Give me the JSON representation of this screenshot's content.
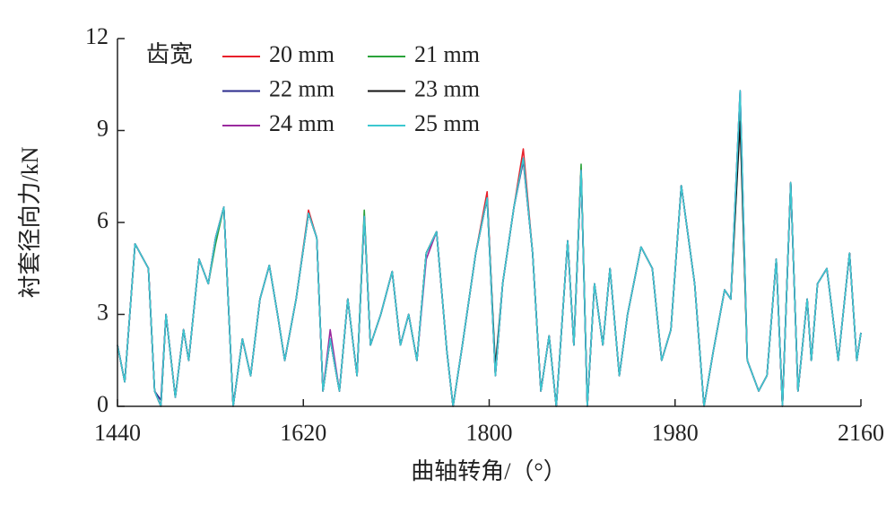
{
  "chart_data": {
    "type": "line",
    "xlabel": "曲轴转角/（°）",
    "ylabel": "衬套径向力/kN",
    "legend_title": "齿宽",
    "xlim": [
      1440,
      2160
    ],
    "xticks": [
      1440,
      1620,
      1800,
      1980,
      2160
    ],
    "ylim": [
      0,
      12
    ],
    "yticks": [
      0,
      3,
      6,
      9,
      12
    ],
    "x": [
      1440,
      1447,
      1457,
      1470,
      1476,
      1482,
      1487,
      1496,
      1504,
      1509,
      1519,
      1528,
      1535,
      1543,
      1552,
      1561,
      1569,
      1578,
      1587,
      1595,
      1602,
      1613,
      1625,
      1633,
      1639,
      1646,
      1655,
      1663,
      1672,
      1679,
      1685,
      1695,
      1706,
      1714,
      1722,
      1730,
      1739,
      1749,
      1759,
      1765,
      1774,
      1787,
      1798,
      1806,
      1813,
      1824,
      1833,
      1842,
      1850,
      1858,
      1865,
      1876,
      1882,
      1889,
      1895,
      1902,
      1910,
      1917,
      1926,
      1934,
      1947,
      1958,
      1967,
      1976,
      1986,
      1999,
      2008,
      2017,
      2028,
      2034,
      2043,
      2050,
      2061,
      2069,
      2078,
      2084,
      2092,
      2099,
      2108,
      2112,
      2118,
      2127,
      2138,
      2149,
      2156,
      2160
    ],
    "series": [
      {
        "name": "20 mm",
        "color": "#e8202a",
        "values": [
          2.0,
          0.8,
          5.3,
          4.5,
          0.5,
          0,
          3.0,
          0.3,
          2.5,
          1.5,
          4.8,
          4.0,
          5.5,
          6.5,
          0,
          2.2,
          1.0,
          3.5,
          4.6,
          3.0,
          1.5,
          3.5,
          6.4,
          5.5,
          0.5,
          2.2,
          0.5,
          3.5,
          1.0,
          6.2,
          2.0,
          3.0,
          4.4,
          2.0,
          3.0,
          1.5,
          5.0,
          5.7,
          1.8,
          0,
          2.0,
          5.0,
          7.0,
          1.0,
          4.0,
          6.5,
          8.4,
          5.0,
          0.5,
          2.3,
          0,
          5.4,
          2.0,
          7.7,
          0,
          4.0,
          2.0,
          4.5,
          1.0,
          3.0,
          5.2,
          4.5,
          1.5,
          2.5,
          7.2,
          4.0,
          0,
          1.8,
          3.8,
          3.5,
          10.0,
          1.5,
          0.5,
          1.0,
          4.8,
          0,
          7.3,
          0.5,
          3.5,
          1.5,
          4.0,
          4.5,
          1.5,
          5.0,
          1.5,
          2.4
        ]
      },
      {
        "name": "21 mm",
        "color": "#2aa33a",
        "values": [
          2.0,
          0.8,
          5.3,
          4.5,
          0.5,
          0,
          3.0,
          0.3,
          2.5,
          1.5,
          4.8,
          4.0,
          5.3,
          6.5,
          0,
          2.2,
          1.0,
          3.5,
          4.6,
          3.0,
          1.5,
          3.5,
          6.3,
          5.5,
          0.5,
          2.2,
          0.5,
          3.5,
          1.0,
          6.4,
          2.0,
          3.0,
          4.4,
          2.0,
          3.0,
          1.5,
          5.0,
          5.7,
          1.8,
          0,
          2.0,
          5.0,
          6.8,
          1.0,
          4.0,
          6.5,
          8.1,
          5.0,
          0.5,
          2.3,
          0,
          5.4,
          2.0,
          7.9,
          0,
          4.0,
          2.0,
          4.5,
          1.0,
          3.0,
          5.2,
          4.5,
          1.5,
          2.5,
          7.2,
          4.0,
          0,
          1.8,
          3.8,
          3.5,
          9.5,
          1.5,
          0.5,
          1.0,
          4.8,
          0,
          7.3,
          0.5,
          3.5,
          1.5,
          4.0,
          4.5,
          1.5,
          5.0,
          1.5,
          2.4
        ]
      },
      {
        "name": "22 mm",
        "color": "#2a2a8c",
        "values": [
          2.0,
          0.8,
          5.3,
          4.5,
          0.5,
          0.2,
          3.0,
          0.3,
          2.5,
          1.5,
          4.8,
          4.0,
          5.5,
          6.5,
          0,
          2.2,
          1.0,
          3.5,
          4.6,
          3.0,
          1.5,
          3.5,
          6.3,
          5.5,
          0.5,
          2.2,
          0.5,
          3.5,
          1.0,
          6.2,
          2.0,
          3.0,
          4.4,
          2.0,
          3.0,
          1.5,
          5.0,
          5.7,
          1.8,
          0,
          2.0,
          5.0,
          6.8,
          1.0,
          4.0,
          6.5,
          8.0,
          5.0,
          0.5,
          2.3,
          0,
          5.4,
          2.0,
          7.7,
          0,
          4.0,
          2.0,
          4.5,
          1.0,
          3.0,
          5.2,
          4.5,
          1.5,
          2.5,
          7.2,
          4.0,
          0,
          1.8,
          3.8,
          3.5,
          10.3,
          1.5,
          0.5,
          1.0,
          4.8,
          0,
          7.3,
          0.5,
          3.5,
          1.5,
          4.0,
          4.5,
          1.5,
          5.0,
          1.5,
          2.4
        ]
      },
      {
        "name": "23 mm",
        "color": "#111111",
        "values": [
          2.0,
          0.8,
          5.3,
          4.5,
          0.5,
          0,
          3.0,
          0.3,
          2.5,
          1.5,
          4.8,
          4.0,
          5.5,
          6.5,
          0,
          2.2,
          1.0,
          3.5,
          4.6,
          3.0,
          1.5,
          3.5,
          6.3,
          5.5,
          0.5,
          2.2,
          0.5,
          3.5,
          1.0,
          6.2,
          2.0,
          3.0,
          4.4,
          2.0,
          3.0,
          1.5,
          5.0,
          5.7,
          1.8,
          0,
          2.0,
          5.0,
          6.8,
          1.3,
          4.0,
          6.5,
          8.1,
          5.0,
          0.5,
          2.3,
          0,
          5.4,
          2.0,
          7.7,
          0,
          4.0,
          2.0,
          4.5,
          1.0,
          3.0,
          5.2,
          4.5,
          1.5,
          2.5,
          7.2,
          4.0,
          0,
          1.8,
          3.8,
          3.5,
          9.3,
          1.5,
          0.5,
          1.0,
          4.8,
          0,
          7.3,
          0.5,
          3.5,
          1.5,
          4.0,
          4.5,
          1.5,
          5.0,
          1.5,
          2.4
        ]
      },
      {
        "name": "24 mm",
        "color": "#9a2a9e",
        "values": [
          2.0,
          0.8,
          5.3,
          4.5,
          0.5,
          0,
          3.0,
          0.3,
          2.5,
          1.5,
          4.8,
          4.0,
          5.5,
          6.5,
          0,
          2.2,
          1.0,
          3.5,
          4.6,
          3.0,
          1.5,
          3.5,
          6.3,
          5.5,
          0.5,
          2.5,
          0.5,
          3.5,
          1.0,
          6.2,
          2.0,
          3.0,
          4.4,
          2.0,
          3.0,
          1.5,
          4.8,
          5.7,
          1.8,
          0,
          2.0,
          5.0,
          6.8,
          1.0,
          4.0,
          6.5,
          8.1,
          5.0,
          0.5,
          2.3,
          0,
          5.4,
          2.0,
          7.7,
          0,
          4.0,
          2.0,
          4.5,
          1.0,
          3.0,
          5.2,
          4.5,
          1.5,
          2.5,
          7.2,
          4.0,
          0,
          1.8,
          3.8,
          3.5,
          10.3,
          1.5,
          0.5,
          1.0,
          4.8,
          0,
          7.3,
          0.5,
          3.5,
          1.5,
          4.0,
          4.5,
          1.5,
          5.0,
          1.5,
          2.4
        ]
      },
      {
        "name": "25 mm",
        "color": "#3cc8d0",
        "values": [
          2.0,
          0.8,
          5.3,
          4.5,
          0.5,
          0,
          3.0,
          0.3,
          2.5,
          1.5,
          4.8,
          4.0,
          5.5,
          6.5,
          0,
          2.2,
          1.0,
          3.5,
          4.6,
          3.0,
          1.5,
          3.5,
          6.3,
          5.5,
          0.5,
          2.2,
          0.5,
          3.5,
          1.0,
          6.2,
          2.0,
          3.0,
          4.4,
          2.0,
          3.0,
          1.5,
          5.0,
          5.7,
          1.8,
          0,
          2.0,
          5.0,
          6.8,
          1.0,
          4.0,
          6.5,
          8.1,
          5.0,
          0.5,
          2.3,
          0,
          5.4,
          2.0,
          7.7,
          0,
          4.0,
          2.0,
          4.5,
          1.0,
          3.0,
          5.2,
          4.5,
          1.5,
          2.5,
          7.2,
          4.0,
          0,
          1.8,
          3.8,
          3.5,
          10.3,
          1.5,
          0.5,
          1.0,
          4.8,
          0,
          7.3,
          0.5,
          3.5,
          1.5,
          4.0,
          4.5,
          1.5,
          5.0,
          1.5,
          2.4
        ]
      }
    ]
  }
}
